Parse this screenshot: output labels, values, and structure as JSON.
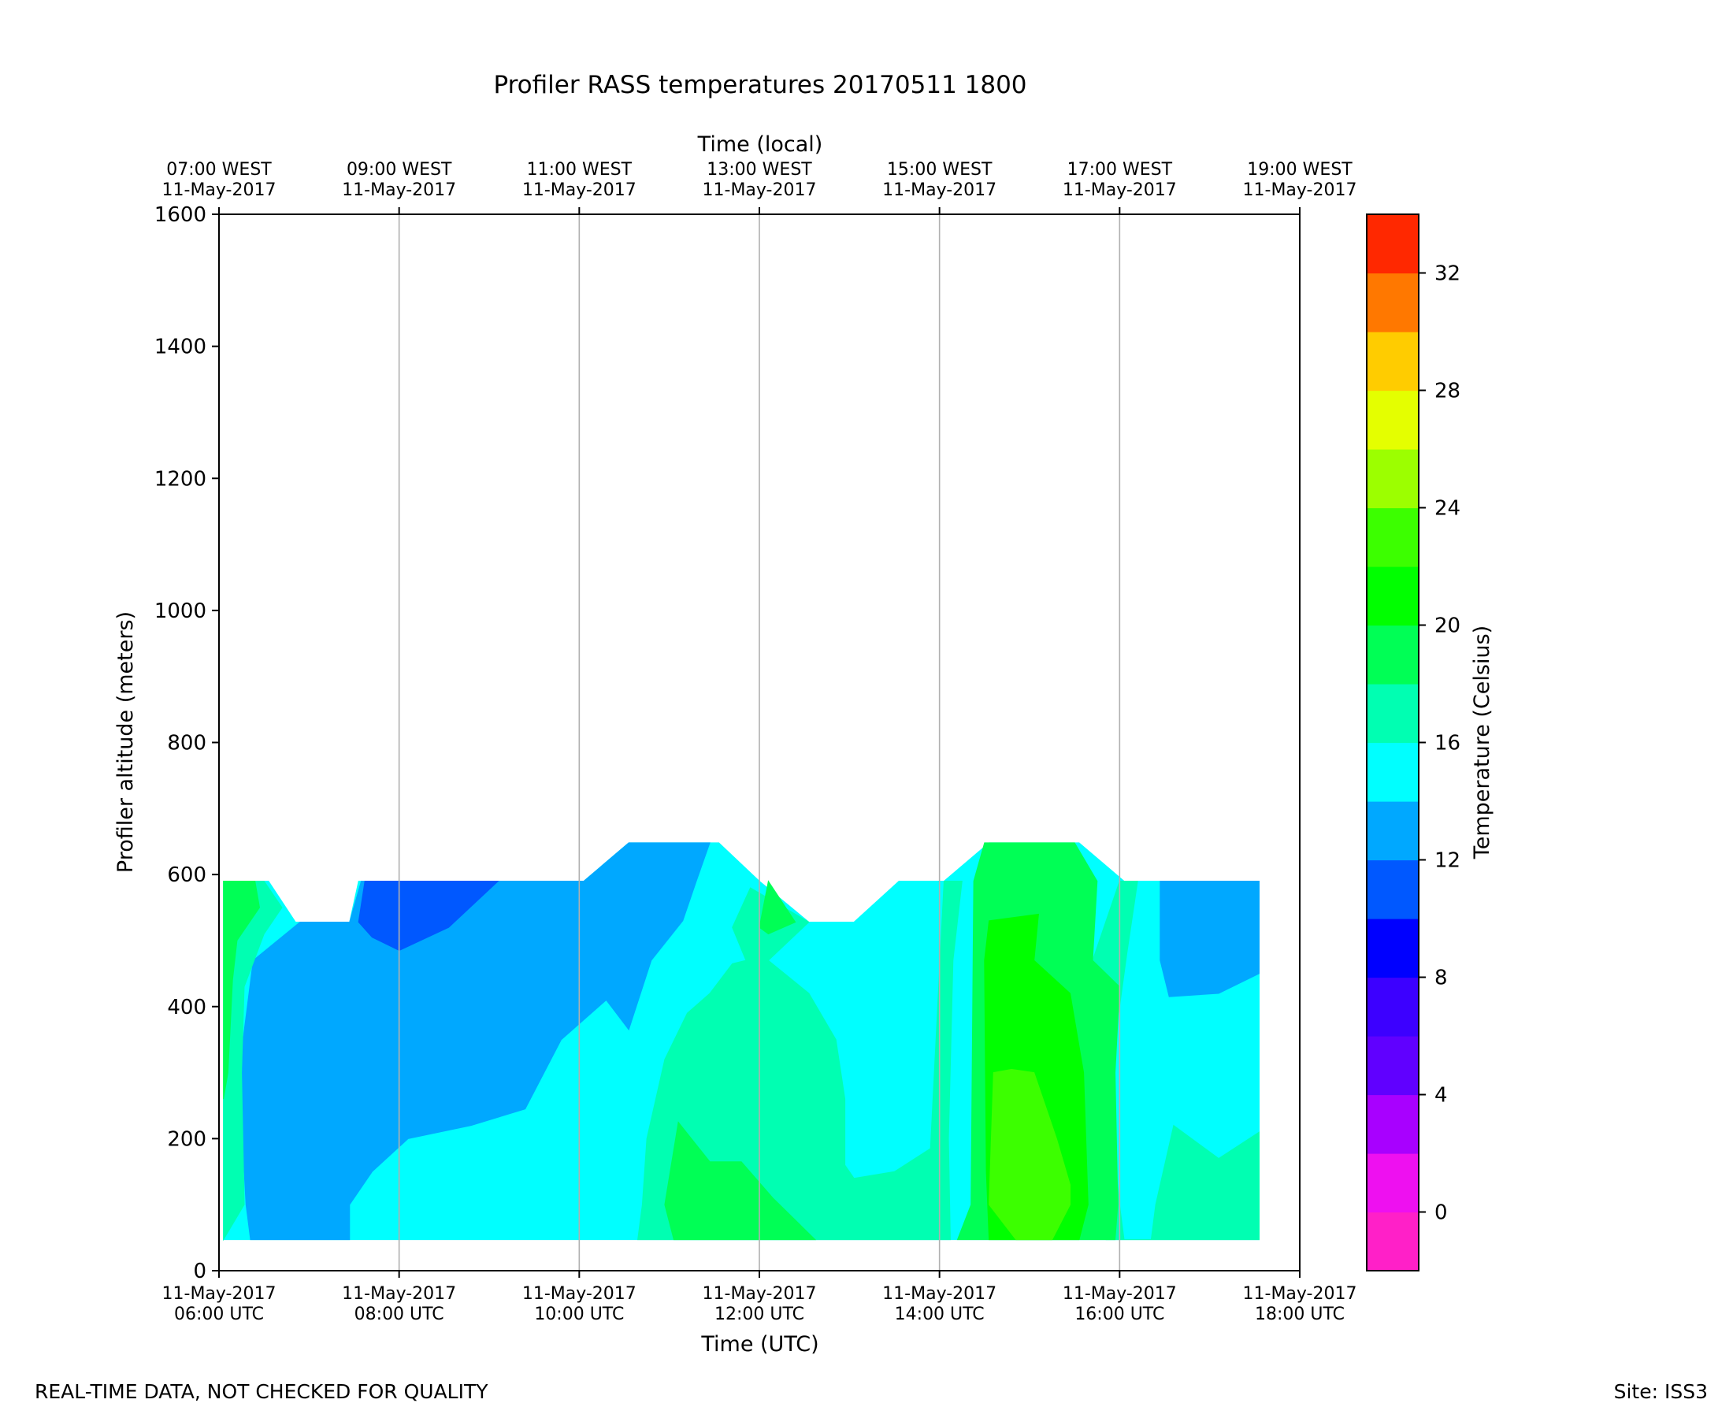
{
  "chart_data": {
    "type": "heatmap",
    "title": "Profiler RASS temperatures 20170511 1800",
    "xlabel": "Time (UTC)",
    "xlabel_top": "Time (local)",
    "ylabel": "Profiler altitude (meters)",
    "colorbar_label": "Temperature (Celsius)",
    "x_range_hours": [
      6,
      18
    ],
    "ylim": [
      0,
      1600
    ],
    "y_ticks": [
      0,
      200,
      400,
      600,
      800,
      1000,
      1200,
      1400,
      1600
    ],
    "x_ticks_bottom": [
      {
        "hour": 6,
        "line1": "11-May-2017",
        "line2": "06:00 UTC"
      },
      {
        "hour": 8,
        "line1": "11-May-2017",
        "line2": "08:00 UTC"
      },
      {
        "hour": 10,
        "line1": "11-May-2017",
        "line2": "10:00 UTC"
      },
      {
        "hour": 12,
        "line1": "11-May-2017",
        "line2": "12:00 UTC"
      },
      {
        "hour": 14,
        "line1": "11-May-2017",
        "line2": "14:00 UTC"
      },
      {
        "hour": 16,
        "line1": "11-May-2017",
        "line2": "16:00 UTC"
      },
      {
        "hour": 18,
        "line1": "11-May-2017",
        "line2": "18:00 UTC"
      }
    ],
    "x_ticks_top": [
      {
        "hour": 6,
        "line1": "07:00 WEST",
        "line2": "11-May-2017"
      },
      {
        "hour": 8,
        "line1": "09:00 WEST",
        "line2": "11-May-2017"
      },
      {
        "hour": 10,
        "line1": "11:00 WEST",
        "line2": "11-May-2017"
      },
      {
        "hour": 12,
        "line1": "13:00 WEST",
        "line2": "11-May-2017"
      },
      {
        "hour": 14,
        "line1": "15:00 WEST",
        "line2": "11-May-2017"
      },
      {
        "hour": 16,
        "line1": "17:00 WEST",
        "line2": "11-May-2017"
      },
      {
        "hour": 18,
        "line1": "19:00 WEST",
        "line2": "11-May-2017"
      }
    ],
    "grid_hours": [
      8,
      10,
      12,
      14,
      16
    ],
    "colorbar": {
      "levels": [
        -2,
        0,
        2,
        4,
        6,
        8,
        10,
        12,
        14,
        16,
        18,
        20,
        22,
        24,
        26,
        28,
        30,
        32,
        34
      ],
      "colors": [
        "#ff20c8",
        "#ee10f0",
        "#a800ff",
        "#6000ff",
        "#3c00ff",
        "#0000ff",
        "#0058ff",
        "#00a8ff",
        "#00ffff",
        "#00ffb2",
        "#00ff55",
        "#00ff00",
        "#3cff00",
        "#9cff00",
        "#e4ff00",
        "#ffcc00",
        "#ff7800",
        "#ff2800"
      ],
      "ticks": [
        0,
        4,
        8,
        12,
        16,
        20,
        24,
        28,
        32
      ]
    },
    "regions": [
      {
        "temp_c": 15,
        "points": [
          [
            6.05,
            47
          ],
          [
            6.05,
            590
          ],
          [
            6.55,
            590
          ],
          [
            6.85,
            528
          ],
          [
            7.45,
            528
          ],
          [
            7.55,
            590
          ],
          [
            10.05,
            590
          ],
          [
            10.55,
            648
          ],
          [
            11.55,
            648
          ],
          [
            12.0,
            590
          ],
          [
            12.55,
            528
          ],
          [
            13.05,
            528
          ],
          [
            13.55,
            590
          ],
          [
            14.05,
            590
          ],
          [
            14.55,
            648
          ],
          [
            15.55,
            648
          ],
          [
            16.05,
            590
          ],
          [
            17.55,
            590
          ],
          [
            17.55,
            47
          ]
        ]
      },
      {
        "temp_c": 13,
        "points": [
          [
            6.35,
            47
          ],
          [
            6.3,
            100
          ],
          [
            6.22,
            300
          ],
          [
            6.38,
            470
          ],
          [
            6.9,
            528
          ],
          [
            7.45,
            528
          ],
          [
            7.58,
            590
          ],
          [
            10.05,
            590
          ],
          [
            10.55,
            648
          ],
          [
            11.45,
            648
          ],
          [
            11.3,
            590
          ],
          [
            11.15,
            530
          ],
          [
            10.8,
            470
          ],
          [
            10.55,
            365
          ],
          [
            10.3,
            410
          ],
          [
            9.8,
            350
          ],
          [
            9.4,
            245
          ],
          [
            8.8,
            220
          ],
          [
            8.1,
            200
          ],
          [
            7.7,
            150
          ],
          [
            7.45,
            100
          ],
          [
            7.45,
            47
          ],
          [
            6.95,
            47
          ]
        ]
      },
      {
        "temp_c": 13,
        "points": [
          [
            16.45,
            590
          ],
          [
            17.55,
            590
          ],
          [
            17.55,
            450
          ],
          [
            17.1,
            420
          ],
          [
            16.55,
            415
          ],
          [
            16.45,
            470
          ]
        ]
      },
      {
        "temp_c": 11,
        "points": [
          [
            7.55,
            528
          ],
          [
            7.62,
            590
          ],
          [
            8.1,
            590
          ],
          [
            9.1,
            590
          ],
          [
            8.55,
            520
          ],
          [
            8.0,
            485
          ],
          [
            7.7,
            505
          ]
        ]
      },
      {
        "temp_c": 17,
        "points": [
          [
            6.05,
            47
          ],
          [
            6.05,
            590
          ],
          [
            6.5,
            590
          ],
          [
            6.7,
            550
          ],
          [
            6.5,
            510
          ],
          [
            6.28,
            430
          ],
          [
            6.25,
            300
          ],
          [
            6.28,
            100
          ],
          [
            6.05,
            47
          ]
        ]
      },
      {
        "temp_c": 17,
        "points": [
          [
            10.65,
            47
          ],
          [
            10.7,
            100
          ],
          [
            10.75,
            200
          ],
          [
            10.95,
            320
          ],
          [
            11.2,
            390
          ],
          [
            11.45,
            420
          ],
          [
            11.7,
            465
          ],
          [
            11.85,
            470
          ],
          [
            11.7,
            520
          ],
          [
            11.9,
            580
          ],
          [
            12.55,
            528
          ],
          [
            12.1,
            470
          ],
          [
            12.55,
            420
          ],
          [
            12.85,
            350
          ],
          [
            12.95,
            260
          ],
          [
            12.95,
            160
          ],
          [
            13.05,
            140
          ],
          [
            13.5,
            150
          ],
          [
            13.9,
            185
          ],
          [
            14.05,
            590
          ],
          [
            14.25,
            590
          ],
          [
            14.15,
            470
          ],
          [
            14.1,
            200
          ],
          [
            14.12,
            47
          ]
        ]
      },
      {
        "temp_c": 17,
        "points": [
          [
            15.7,
            470
          ],
          [
            16.0,
            590
          ],
          [
            16.2,
            590
          ],
          [
            16.08,
            480
          ],
          [
            16.0,
            400
          ],
          [
            15.85,
            300
          ],
          [
            16.0,
            100
          ],
          [
            16.05,
            47
          ],
          [
            16.35,
            47
          ],
          [
            16.4,
            100
          ],
          [
            16.6,
            220
          ],
          [
            17.1,
            170
          ],
          [
            17.55,
            210
          ],
          [
            17.55,
            47
          ],
          [
            15.85,
            47
          ],
          [
            15.75,
            150
          ]
        ]
      },
      {
        "temp_c": 19,
        "points": [
          [
            6.05,
            260
          ],
          [
            6.05,
            590
          ],
          [
            6.4,
            590
          ],
          [
            6.45,
            550
          ],
          [
            6.2,
            500
          ],
          [
            6.15,
            440
          ],
          [
            6.1,
            300
          ]
        ]
      },
      {
        "temp_c": 19,
        "points": [
          [
            11.05,
            47
          ],
          [
            10.95,
            100
          ],
          [
            11.1,
            225
          ],
          [
            11.45,
            165
          ],
          [
            11.8,
            165
          ],
          [
            12.15,
            110
          ],
          [
            12.62,
            47
          ]
        ]
      },
      {
        "temp_c": 19,
        "points": [
          [
            12.0,
            520
          ],
          [
            12.1,
            590
          ],
          [
            12.4,
            528
          ],
          [
            12.1,
            510
          ]
        ]
      },
      {
        "temp_c": 19,
        "points": [
          [
            14.2,
            47
          ],
          [
            14.35,
            100
          ],
          [
            14.38,
            590
          ],
          [
            14.5,
            648
          ],
          [
            15.5,
            648
          ],
          [
            15.75,
            590
          ],
          [
            15.7,
            470
          ],
          [
            16.0,
            430
          ],
          [
            15.95,
            300
          ],
          [
            15.98,
            100
          ],
          [
            15.95,
            47
          ]
        ]
      },
      {
        "temp_c": 21,
        "points": [
          [
            14.55,
            47
          ],
          [
            14.52,
            150
          ],
          [
            14.5,
            470
          ],
          [
            14.55,
            530
          ],
          [
            15.1,
            540
          ],
          [
            15.05,
            470
          ],
          [
            15.45,
            420
          ],
          [
            15.6,
            300
          ],
          [
            15.65,
            100
          ],
          [
            15.55,
            47
          ]
        ]
      },
      {
        "temp_c": 23,
        "points": [
          [
            14.85,
            47
          ],
          [
            14.55,
            100
          ],
          [
            14.6,
            300
          ],
          [
            14.8,
            305
          ],
          [
            15.05,
            300
          ],
          [
            15.3,
            200
          ],
          [
            15.45,
            130
          ],
          [
            15.45,
            100
          ],
          [
            15.25,
            47
          ]
        ]
      }
    ],
    "annotations_footer": {
      "left": "REAL-TIME DATA, NOT CHECKED FOR QUALITY",
      "right": "Site: ISS3"
    }
  }
}
